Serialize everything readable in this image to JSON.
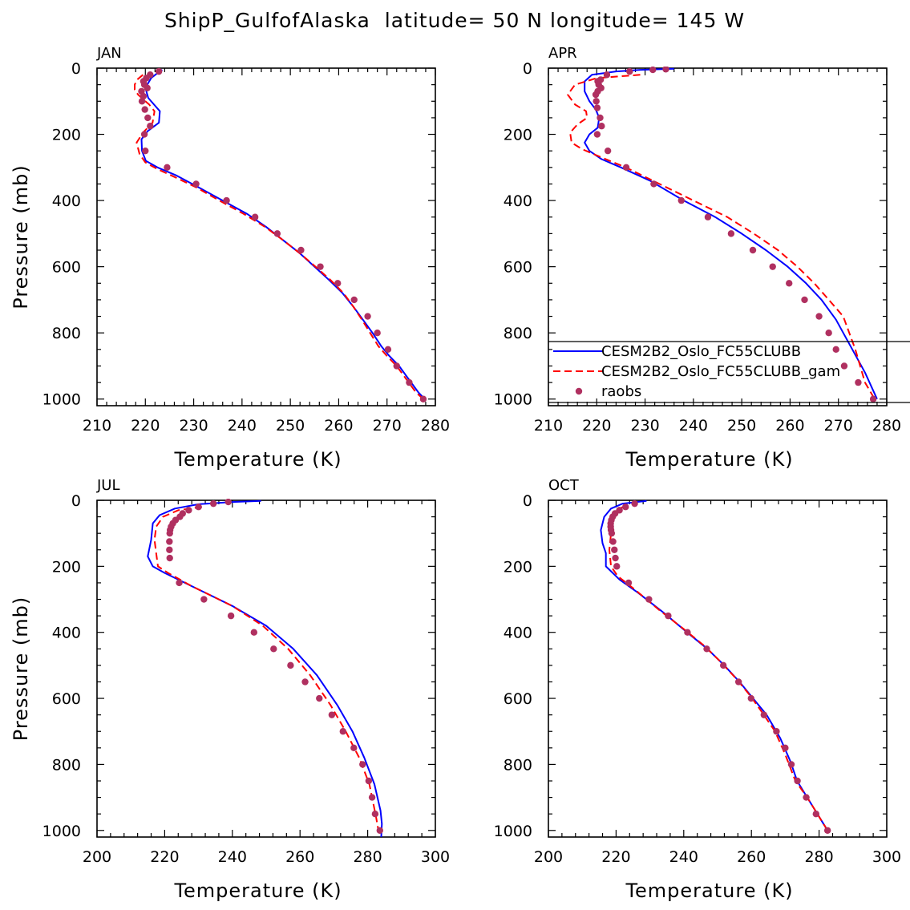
{
  "title": "ShipP_GulfofAlaska  latitude= 50 N longitude= 145 W",
  "chart_data": [
    {
      "type": "line",
      "panel": "JAN",
      "xlabel": "Temperature (K)",
      "ylabel": "Pressure (mb)",
      "xlim": [
        210,
        280
      ],
      "xticks": [
        210,
        220,
        230,
        240,
        250,
        260,
        270,
        280
      ],
      "ylim": [
        0,
        1020
      ],
      "yticks": [
        0,
        200,
        400,
        600,
        800,
        1000
      ],
      "series": [
        {
          "name": "CESM2B2_Oslo_FC55CLUBB",
          "style": "solid",
          "color": "#0000ff",
          "x": [
            223.5,
            222.5,
            221.2,
            220.4,
            220.2,
            220.6,
            221.8,
            223.0,
            222.8,
            220.5,
            219.2,
            219.3,
            220.1,
            222.5,
            226.5,
            231.0,
            236.0,
            241.0,
            245.0,
            248.5,
            252.0,
            255.0,
            258.0,
            260.8,
            263.0,
            265.0,
            267.0,
            268.8,
            270.5,
            272.5,
            274.5,
            276.5,
            277.8
          ],
          "y": [
            5,
            15,
            30,
            50,
            70,
            90,
            110,
            130,
            165,
            190,
            215,
            250,
            280,
            300,
            325,
            360,
            400,
            440,
            480,
            520,
            560,
            600,
            640,
            680,
            720,
            760,
            800,
            840,
            870,
            900,
            940,
            980,
            1000
          ]
        },
        {
          "name": "CESM2B2_Oslo_FC55CLUBB_gam",
          "style": "dashed",
          "color": "#ff0000",
          "x": [
            219.5,
            218.3,
            217.8,
            217.8,
            218.5,
            219.6,
            220.8,
            221.9,
            221.5,
            219.5,
            218.2,
            218.8,
            220.0,
            222.5,
            226.2,
            230.5,
            235.3,
            240.3,
            244.8,
            248.5,
            252.0,
            255.2,
            258.3,
            261.0,
            263.0,
            264.8,
            266.5,
            268.2,
            270.0,
            272.0,
            274.0,
            276.0,
            277.5
          ],
          "y": [
            20,
            35,
            50,
            65,
            80,
            95,
            110,
            130,
            165,
            195,
            225,
            260,
            285,
            305,
            330,
            360,
            400,
            440,
            480,
            520,
            560,
            600,
            640,
            680,
            720,
            760,
            800,
            840,
            870,
            900,
            940,
            980,
            1000
          ]
        },
        {
          "name": "raobs",
          "style": "markers",
          "color": "#b03060",
          "x": [
            222.8,
            221.0,
            220.2,
            219.6,
            219.8,
            220.4,
            219.2,
            219.6,
            219.3,
            219.9,
            220.5,
            221.0,
            219.8,
            220.0,
            224.5,
            230.5,
            236.8,
            242.7,
            247.3,
            252.2,
            256.2,
            259.8,
            263.2,
            266.0,
            268.0,
            270.2,
            272.0,
            274.6,
            277.5
          ],
          "y": [
            10,
            20,
            30,
            40,
            50,
            60,
            70,
            85,
            100,
            125,
            150,
            175,
            200,
            250,
            300,
            350,
            400,
            450,
            500,
            550,
            600,
            650,
            700,
            750,
            800,
            850,
            900,
            950,
            1000
          ]
        }
      ]
    },
    {
      "type": "line",
      "panel": "APR",
      "xlabel": "Temperature (K)",
      "ylabel": "",
      "xlim": [
        210,
        280
      ],
      "xticks": [
        210,
        220,
        230,
        240,
        250,
        260,
        270,
        280
      ],
      "ylim": [
        0,
        1020
      ],
      "yticks": [
        0,
        200,
        400,
        600,
        800,
        1000
      ],
      "series": [
        {
          "name": "CESM2B2_Oslo_FC55CLUBB",
          "style": "solid",
          "color": "#0000ff",
          "x": [
            236.0,
            229.0,
            224.0,
            219.0,
            217.5,
            217.5,
            218.5,
            219.8,
            220.5,
            220.2,
            218.5,
            217.5,
            218.5,
            221.0,
            225.0,
            231.0,
            238.0,
            244.5,
            250.0,
            255.0,
            259.5,
            263.3,
            266.5,
            269.5,
            272.5,
            275.5,
            278.0
          ],
          "y": [
            2,
            5,
            10,
            20,
            40,
            70,
            100,
            125,
            150,
            180,
            200,
            225,
            250,
            275,
            300,
            340,
            400,
            450,
            500,
            550,
            600,
            650,
            700,
            760,
            840,
            920,
            1000
          ]
        },
        {
          "name": "CESM2B2_Oslo_FC55CLUBB_gam",
          "style": "dashed",
          "color": "#ff0000",
          "x": [
            229.0,
            220.0,
            215.5,
            214.0,
            215.5,
            217.8,
            218.0,
            216.0,
            214.5,
            214.8,
            217.0,
            221.0,
            226.0,
            233.0,
            240.0,
            247.0,
            252.5,
            257.5,
            261.5,
            265.0,
            268.0,
            271.0,
            273.5,
            275.5,
            277.5
          ],
          "y": [
            20,
            30,
            50,
            80,
            110,
            130,
            150,
            170,
            195,
            225,
            245,
            270,
            300,
            350,
            400,
            450,
            500,
            550,
            600,
            650,
            700,
            750,
            850,
            950,
            1000
          ]
        },
        {
          "name": "raobs",
          "style": "markers",
          "color": "#b03060",
          "x": [
            234.3,
            231.6,
            226.8,
            222.1,
            220.8,
            220.2,
            220.4,
            220.9,
            220.2,
            219.8,
            219.9,
            220.1,
            220.7,
            221.0,
            220.1,
            222.3,
            226.1,
            231.8,
            237.5,
            243.0,
            247.8,
            252.3,
            256.4,
            259.8,
            263.0,
            266.0,
            268.0,
            269.5,
            271.2,
            274.1,
            277.2
          ],
          "y": [
            3,
            5,
            10,
            20,
            35,
            40,
            50,
            60,
            70,
            80,
            100,
            120,
            150,
            175,
            200,
            250,
            300,
            350,
            400,
            450,
            500,
            550,
            600,
            650,
            700,
            750,
            800,
            850,
            900,
            950,
            1000
          ]
        }
      ]
    },
    {
      "type": "line",
      "panel": "JUL",
      "xlabel": "Temperature (K)",
      "ylabel": "Pressure (mb)",
      "xlim": [
        200,
        300
      ],
      "xticks": [
        200,
        220,
        240,
        260,
        280,
        300
      ],
      "ylim": [
        0,
        1020
      ],
      "yticks": [
        0,
        200,
        400,
        600,
        800,
        1000
      ],
      "series": [
        {
          "name": "CESM2B2_Oslo_FC55CLUBB",
          "style": "solid",
          "color": "#0000ff",
          "x": [
            248.5,
            240.0,
            230.0,
            223.0,
            218.5,
            216.5,
            216.0,
            215.0,
            216.5,
            220.0,
            228.0,
            240.0,
            250.0,
            258.0,
            265.0,
            271.0,
            275.5,
            279.0,
            282.0,
            283.8,
            284.2,
            284.0
          ],
          "y": [
            2,
            5,
            12,
            25,
            45,
            70,
            120,
            170,
            200,
            220,
            260,
            320,
            380,
            450,
            530,
            620,
            700,
            780,
            860,
            940,
            980,
            1020
          ]
        },
        {
          "name": "CESM2B2_Oslo_FC55CLUBB_gam",
          "style": "dashed",
          "color": "#ff0000",
          "x": [
            231.0,
            224.0,
            219.5,
            217.5,
            217.0,
            217.5,
            218.0,
            221.0,
            228.0,
            240.0,
            249.0,
            256.5,
            263.0,
            269.0,
            273.5,
            277.5,
            280.5,
            282.5,
            283.5
          ],
          "y": [
            20,
            30,
            50,
            80,
            120,
            160,
            200,
            220,
            260,
            320,
            380,
            450,
            530,
            620,
            700,
            780,
            860,
            960,
            1020
          ]
        },
        {
          "name": "raobs",
          "style": "markers",
          "color": "#b03060",
          "x": [
            238.8,
            234.4,
            230.0,
            227.1,
            225.3,
            224.5,
            223.2,
            222.4,
            221.9,
            221.6,
            221.5,
            221.4,
            221.4,
            221.5,
            224.3,
            231.6,
            239.6,
            246.4,
            252.2,
            257.2,
            261.5,
            265.7,
            269.4,
            272.7,
            275.9,
            278.5,
            280.3,
            281.3,
            282.2,
            283.6
          ],
          "y": [
            5,
            10,
            20,
            30,
            40,
            50,
            60,
            70,
            80,
            90,
            100,
            125,
            150,
            175,
            250,
            300,
            350,
            400,
            450,
            500,
            550,
            600,
            650,
            700,
            750,
            800,
            850,
            900,
            950,
            1000
          ]
        }
      ]
    },
    {
      "type": "line",
      "panel": "OCT",
      "xlabel": "Temperature (K)",
      "ylabel": "",
      "xlim": [
        200,
        300
      ],
      "xticks": [
        200,
        220,
        240,
        260,
        280,
        300
      ],
      "ylim": [
        0,
        1020
      ],
      "yticks": [
        0,
        200,
        400,
        600,
        800,
        1000
      ],
      "series": [
        {
          "name": "CESM2B2_Oslo_FC55CLUBB",
          "style": "solid",
          "color": "#0000ff",
          "x": [
            229.0,
            222.0,
            218.5,
            216.5,
            215.5,
            216.0,
            217.0,
            217.0,
            218.0,
            221.0,
            226.5,
            234.0,
            241.0,
            247.0,
            252.0,
            256.5,
            260.5,
            264.5,
            268.5,
            271.5,
            273.5,
            276.5,
            279.5,
            282.5
          ],
          "y": [
            2,
            10,
            25,
            50,
            90,
            130,
            160,
            200,
            210,
            240,
            280,
            340,
            400,
            450,
            500,
            550,
            600,
            650,
            720,
            790,
            850,
            900,
            950,
            1000
          ]
        },
        {
          "name": "CESM2B2_Oslo_FC55CLUBB_gam",
          "style": "dashed",
          "color": "#ff0000",
          "x": [
            222.0,
            219.5,
            218.5,
            218.5,
            218.0,
            218.5,
            220.5,
            225.5,
            232.5,
            240.0,
            246.0,
            251.0,
            255.5,
            259.5,
            263.0,
            267.0,
            270.0,
            273.0,
            276.5,
            279.5,
            282.5
          ],
          "y": [
            20,
            40,
            60,
            100,
            150,
            200,
            230,
            270,
            330,
            390,
            440,
            490,
            540,
            590,
            640,
            700,
            770,
            850,
            900,
            950,
            1000
          ]
        },
        {
          "name": "raobs",
          "style": "markers",
          "color": "#b03060",
          "x": [
            225.5,
            222.8,
            221.0,
            219.7,
            219.0,
            218.6,
            218.4,
            218.4,
            218.5,
            218.7,
            219.1,
            219.5,
            219.8,
            220.2,
            223.7,
            229.7,
            235.4,
            241.1,
            246.8,
            251.7,
            256.2,
            259.9,
            263.7,
            267.4,
            270.0,
            271.8,
            273.6,
            276.2,
            279.1,
            282.5
          ],
          "y": [
            10,
            20,
            30,
            40,
            50,
            60,
            70,
            80,
            90,
            100,
            125,
            150,
            175,
            200,
            250,
            300,
            350,
            400,
            450,
            500,
            550,
            600,
            650,
            700,
            750,
            800,
            850,
            900,
            950,
            1000
          ]
        }
      ]
    }
  ]
}
